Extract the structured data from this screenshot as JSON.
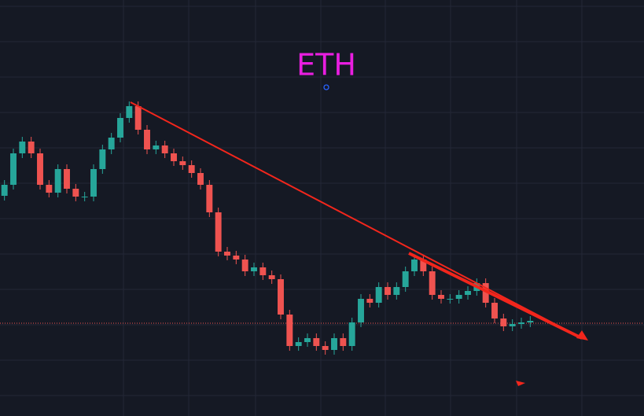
{
  "chart_data": {
    "type": "candlestick",
    "title": "ETH",
    "ylim": [
      0,
      529
    ],
    "up_color": "#26a69a",
    "down_color": "#ef5350",
    "title_color": "#e91ee0",
    "open": [
      280,
      294,
      334,
      349,
      334,
      294,
      284,
      314,
      289,
      279,
      279,
      314,
      339,
      354,
      379,
      394,
      364,
      339,
      344,
      334,
      324,
      319,
      309,
      294,
      259,
      209,
      204,
      199,
      184,
      189,
      179,
      174,
      129,
      89,
      94,
      99,
      89,
      84,
      99,
      89,
      119,
      149,
      144,
      164,
      154,
      164,
      184,
      199,
      184,
      154,
      149,
      149,
      154,
      159,
      169,
      144,
      124,
      114,
      117,
      119
    ],
    "high": [
      300,
      340,
      355,
      355,
      340,
      300,
      320,
      320,
      295,
      285,
      320,
      345,
      360,
      385,
      400,
      400,
      370,
      350,
      350,
      340,
      330,
      325,
      315,
      300,
      265,
      215,
      210,
      205,
      195,
      195,
      185,
      180,
      135,
      100,
      105,
      105,
      95,
      105,
      105,
      125,
      155,
      155,
      170,
      170,
      170,
      190,
      205,
      205,
      190,
      160,
      155,
      160,
      165,
      175,
      175,
      150,
      130,
      123,
      125,
      127
    ],
    "low": [
      274,
      288,
      328,
      328,
      288,
      278,
      278,
      283,
      273,
      273,
      273,
      308,
      333,
      348,
      373,
      358,
      333,
      333,
      328,
      318,
      313,
      303,
      288,
      253,
      203,
      198,
      193,
      178,
      178,
      173,
      168,
      123,
      83,
      83,
      88,
      83,
      78,
      78,
      83,
      83,
      113,
      138,
      138,
      148,
      148,
      158,
      178,
      178,
      148,
      143,
      143,
      143,
      148,
      153,
      138,
      118,
      108,
      108,
      111,
      113
    ],
    "close": [
      294,
      334,
      349,
      334,
      294,
      284,
      314,
      289,
      279,
      279,
      314,
      339,
      354,
      379,
      394,
      364,
      339,
      344,
      334,
      324,
      319,
      309,
      294,
      259,
      209,
      204,
      199,
      184,
      189,
      179,
      174,
      129,
      89,
      94,
      99,
      89,
      84,
      99,
      89,
      119,
      149,
      144,
      164,
      154,
      164,
      184,
      199,
      184,
      154,
      149,
      149,
      154,
      159,
      169,
      144,
      124,
      114,
      117,
      119,
      121
    ]
  }
}
